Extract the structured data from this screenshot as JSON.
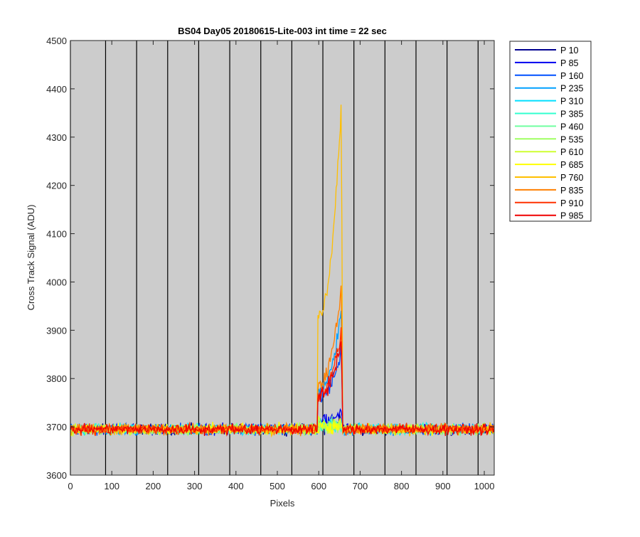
{
  "chart_data": {
    "type": "line",
    "title": "BS04 Day05 20180615-Lite-003 int time = 22 sec",
    "xlabel": "Pixels",
    "ylabel": "Cross Track Signal (ADU)",
    "xlim": [
      0,
      1024
    ],
    "ylim": [
      3600,
      4500
    ],
    "xticks": [
      0,
      100,
      200,
      300,
      400,
      500,
      600,
      700,
      800,
      900,
      1000
    ],
    "yticks": [
      3600,
      3700,
      3800,
      3900,
      4000,
      4100,
      4200,
      4300,
      4400,
      4500
    ],
    "vertical_lines_x": [
      0,
      85,
      160,
      235,
      310,
      385,
      460,
      535,
      610,
      685,
      760,
      835,
      910,
      985
    ],
    "plot_background": "#cccccc",
    "grid": false,
    "legend_position": "outside-right",
    "baseline": 3695,
    "noise_amplitude": 8,
    "hot_region": [
      597,
      657
    ],
    "series": [
      {
        "name": "P 10",
        "color": "#00008f",
        "region_start": 3700,
        "region_peak": 3720
      },
      {
        "name": "P 85",
        "color": "#0000ef",
        "region_start": 3705,
        "region_peak": 3740
      },
      {
        "name": "P 160",
        "color": "#0050ff",
        "region_start": 3760,
        "region_peak": 3870
      },
      {
        "name": "P 235",
        "color": "#00a0ff",
        "region_start": 3770,
        "region_peak": 3960
      },
      {
        "name": "P 310",
        "color": "#00dfff",
        "region_start": 3700,
        "region_peak": 3705
      },
      {
        "name": "P 385",
        "color": "#30ffcf",
        "region_start": 3700,
        "region_peak": 3705
      },
      {
        "name": "P 460",
        "color": "#70ffa0",
        "region_start": 3700,
        "region_peak": 3705
      },
      {
        "name": "P 535",
        "color": "#9fff60",
        "region_start": 3700,
        "region_peak": 3705
      },
      {
        "name": "P 610",
        "color": "#cfff30",
        "region_start": 3700,
        "region_peak": 3705
      },
      {
        "name": "P 685",
        "color": "#ffff00",
        "region_start": 3700,
        "region_peak": 3705
      },
      {
        "name": "P 760",
        "color": "#ffbf00",
        "region_start": 3930,
        "region_peak": 4410
      },
      {
        "name": "P 835",
        "color": "#ff7f00",
        "region_start": 3790,
        "region_peak": 4010
      },
      {
        "name": "P 910",
        "color": "#ff3000",
        "region_start": 3770,
        "region_peak": 3910
      },
      {
        "name": "P 985",
        "color": "#ef0000",
        "region_start": 3765,
        "region_peak": 3880
      }
    ]
  }
}
